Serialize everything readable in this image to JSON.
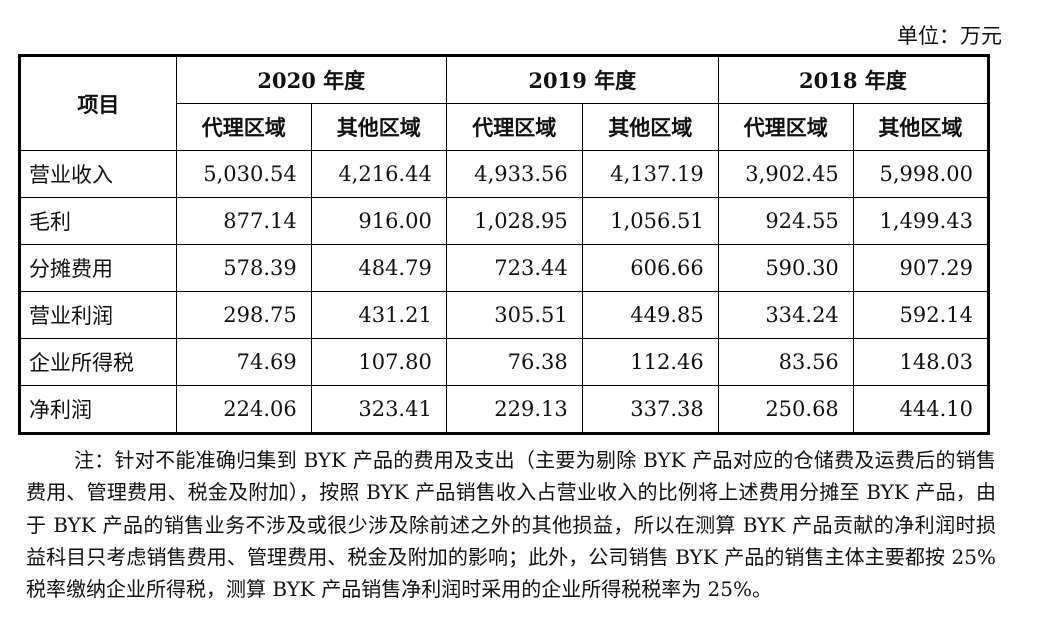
{
  "unit_label": "单位：万元",
  "table": {
    "item_header": "项目",
    "year_headers": [
      "2020 年度",
      "2019 年度",
      "2018 年度"
    ],
    "sub_headers": [
      "代理区域",
      "其他区域",
      "代理区域",
      "其他区域",
      "代理区域",
      "其他区域"
    ],
    "rows": [
      {
        "label": "营业收入",
        "values": [
          "5,030.54",
          "4,216.44",
          "4,933.56",
          "4,137.19",
          "3,902.45",
          "5,998.00"
        ]
      },
      {
        "label": "毛利",
        "values": [
          "877.14",
          "916.00",
          "1,028.95",
          "1,056.51",
          "924.55",
          "1,499.43"
        ]
      },
      {
        "label": "分摊费用",
        "values": [
          "578.39",
          "484.79",
          "723.44",
          "606.66",
          "590.30",
          "907.29"
        ]
      },
      {
        "label": "营业利润",
        "values": [
          "298.75",
          "431.21",
          "305.51",
          "449.85",
          "334.24",
          "592.14"
        ]
      },
      {
        "label": "企业所得税",
        "values": [
          "74.69",
          "107.80",
          "76.38",
          "112.46",
          "83.56",
          "148.03"
        ]
      },
      {
        "label": "净利润",
        "values": [
          "224.06",
          "323.41",
          "229.13",
          "337.38",
          "250.68",
          "444.10"
        ]
      }
    ]
  },
  "note": "注：针对不能准确归集到 BYK 产品的费用及支出（主要为剔除 BYK 产品对应的仓储费及运费后的销售费用、管理费用、税金及附加），按照 BYK 产品销售收入占营业收入的比例将上述费用分摊至 BYK 产品，由于 BYK 产品的销售业务不涉及或很少涉及除前述之外的其他损益，所以在测算 BYK 产品贡献的净利润时损益科目只考虑销售费用、管理费用、税金及附加的影响；此外，公司销售 BYK 产品的销售主体主要都按 25%税率缴纳企业所得税，测算 BYK 产品销售净利润时采用的企业所得税税率为 25%。"
}
